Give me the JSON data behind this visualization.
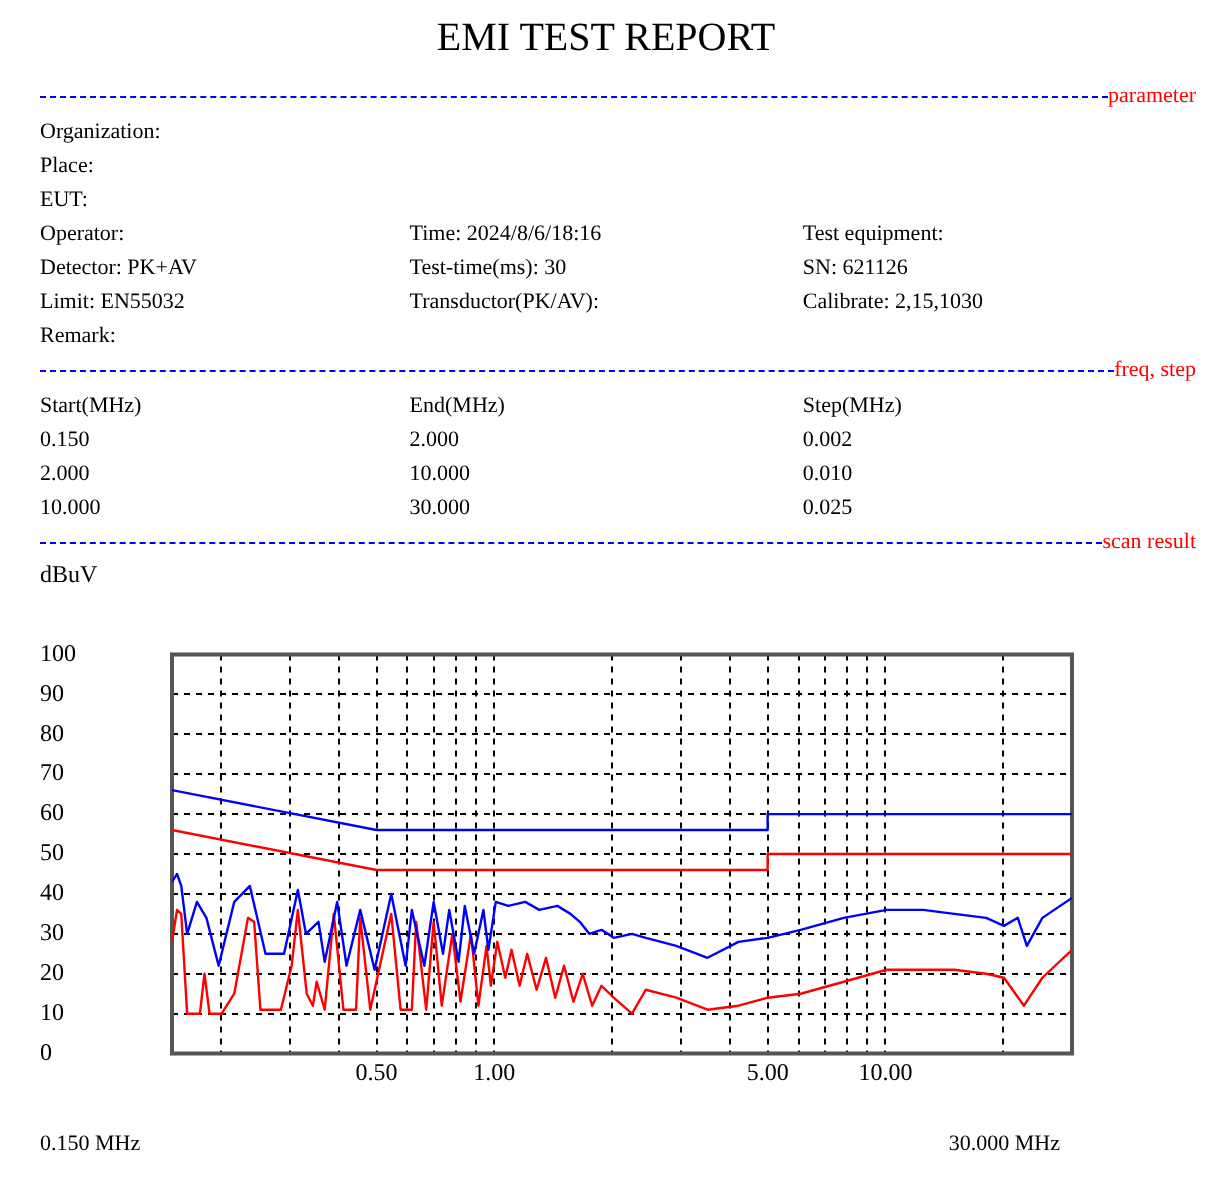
{
  "chart_data": {
    "type": "line",
    "title": "EMI TEST REPORT",
    "ylabel": "dBuV",
    "annotations": [
      "parameter",
      "Organization:",
      "Place:",
      "EUT:",
      "Operator:",
      "Time: 2024/8/6/18:16",
      "Test equipment:",
      "Detector: PK+AV",
      "Test-time(ms): 30",
      "SN: 621126",
      "Limit: EN55032",
      "Transductor(PK/AV):",
      "Calibrate: 2,15,1030",
      "Remark:",
      "freq, step",
      "Start(MHz)",
      "End(MHz)",
      "Step(MHz)",
      "0.150",
      "2.000",
      "0.002",
      "2.000",
      "10.000",
      "0.010",
      "10.000",
      "30.000",
      "0.025",
      "scan result",
      "0.150 MHz",
      "30.000 MHz"
    ],
    "log": "x",
    "grid": true,
    "legend": false,
    "marker": "none",
    "line_style": "solid",
    "xlim": [
      0.15,
      30
    ],
    "ylim": [
      0,
      100
    ],
    "xticks": [
      {
        "value": 0.2,
        "label": null
      },
      {
        "value": 0.3,
        "label": null
      },
      {
        "value": 0.4,
        "label": null
      },
      {
        "value": 0.5,
        "label": "0.50"
      },
      {
        "value": 0.6,
        "label": null
      },
      {
        "value": 0.7,
        "label": null
      },
      {
        "value": 0.8,
        "label": null
      },
      {
        "value": 0.9,
        "label": null
      },
      {
        "value": 1,
        "label": "1.00"
      },
      {
        "value": 2,
        "label": null
      },
      {
        "value": 3,
        "label": null
      },
      {
        "value": 4,
        "label": null
      },
      {
        "value": 5,
        "label": "5.00"
      },
      {
        "value": 6,
        "label": null
      },
      {
        "value": 7,
        "label": null
      },
      {
        "value": 8,
        "label": null
      },
      {
        "value": 9,
        "label": null
      },
      {
        "value": 10,
        "label": "10.00"
      },
      {
        "value": 20,
        "label": null
      }
    ],
    "yticks": [
      0,
      10,
      20,
      30,
      40,
      50,
      60,
      70,
      80,
      90,
      100
    ],
    "series": [
      {
        "color": "#0000ff",
        "x": [
          0.15,
          0.5,
          5,
          5,
          30
        ],
        "values": [
          66,
          56,
          56,
          60,
          60
        ]
      },
      {
        "color": "#ff0000",
        "x": [
          0.15,
          0.5,
          5,
          5,
          30
        ],
        "values": [
          56,
          46,
          46,
          50,
          50
        ]
      },
      {
        "color": "#0000ff",
        "x": [
          0.15,
          0.1545,
          0.1584,
          0.164,
          0.1737,
          0.1837,
          0.1974,
          0.2164,
          0.2372,
          0.2601,
          0.2901,
          0.3147,
          0.33,
          0.3553,
          0.3686,
          0.3966,
          0.4191,
          0.4543,
          0.4944,
          0.5453,
          0.5935,
          0.6156,
          0.6625,
          0.7,
          0.7396,
          0.7672,
          0.8105,
          0.8407,
          0.8882,
          0.9382,
          0.9661,
          1.009,
          1.086,
          1.2,
          1.304,
          1.45,
          1.566,
          1.655,
          1.749,
          1.88,
          2.02,
          2.25,
          2.44,
          2.92,
          3.51,
          4.21,
          5,
          6.07,
          7.83,
          10.07,
          12.5,
          15,
          18.1,
          20.1,
          21.8,
          23,
          25.2,
          30
        ],
        "values": [
          43,
          45,
          42,
          30,
          38,
          34,
          22,
          38,
          42,
          25,
          25,
          41,
          30,
          33,
          23,
          38,
          22,
          36,
          21,
          40,
          22,
          36,
          22,
          38,
          25,
          36,
          23,
          37,
          25,
          36,
          26,
          38,
          37,
          38,
          36,
          37,
          35,
          33,
          30,
          31,
          29,
          30,
          29,
          27,
          24,
          28,
          29,
          31,
          34,
          36,
          36,
          35,
          34,
          32,
          34,
          27,
          34,
          39
        ]
      },
      {
        "color": "#ff0000",
        "x": [
          0.15,
          0.1545,
          0.1584,
          0.164,
          0.1768,
          0.1816,
          0.1871,
          0.2009,
          0.2164,
          0.2346,
          0.2433,
          0.2524,
          0.2848,
          0.3034,
          0.3147,
          0.3315,
          0.3438,
          0.3515,
          0.3686,
          0.3888,
          0.4115,
          0.4432,
          0.4543,
          0.482,
          0.5453,
          0.5762,
          0.6156,
          0.6315,
          0.6698,
          0.7,
          0.7341,
          0.7814,
          0.8196,
          0.8718,
          0.9111,
          0.9555,
          0.9803,
          1.018,
          1.067,
          1.107,
          1.161,
          1.214,
          1.283,
          1.356,
          1.432,
          1.508,
          1.594,
          1.683,
          1.779,
          1.88,
          2.02,
          2.25,
          2.44,
          2.92,
          3.51,
          4.21,
          5,
          6.07,
          7.83,
          10.07,
          12.5,
          15,
          18.1,
          20.1,
          22.6,
          25.2,
          30
        ],
        "values": [
          28,
          36,
          35,
          10,
          10,
          20,
          10,
          10,
          15,
          34,
          33,
          11,
          11,
          22,
          36,
          15,
          12,
          18,
          11,
          35,
          11,
          11,
          34,
          11,
          35,
          11,
          11,
          33,
          11,
          33,
          12,
          30,
          13,
          30,
          12,
          27,
          17,
          28,
          19,
          26,
          17,
          25,
          16,
          24,
          14,
          22,
          13,
          20,
          12,
          17,
          14,
          10,
          16,
          14,
          11,
          12,
          14,
          15,
          18,
          21,
          21,
          21,
          20,
          19,
          12,
          19,
          26
        ]
      }
    ]
  }
}
